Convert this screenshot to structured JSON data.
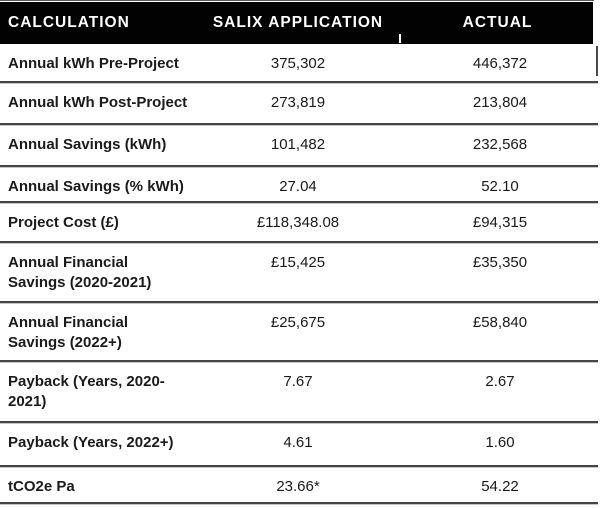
{
  "table": {
    "columns": [
      "CALCULATION",
      "SALIX APPLICATION",
      "ACTUAL"
    ],
    "rows": [
      {
        "label": "Annual kWh Pre-Project",
        "salix": "375,302",
        "actual": "446,372"
      },
      {
        "label": "Annual kWh Post-Project",
        "salix": "273,819",
        "actual": "213,804"
      },
      {
        "label": "Annual Savings (kWh)",
        "salix": "101,482",
        "actual": "232,568"
      },
      {
        "label": "Annual Savings (% kWh)",
        "salix": "27.04",
        "actual": "52.10"
      },
      {
        "label": "Project Cost (£)",
        "salix": "£118,348.08",
        "actual": "£94,315"
      },
      {
        "label": "Annual Financial\nSavings (2020-2021)",
        "salix": "£15,425",
        "actual": "£35,350"
      },
      {
        "label": "Annual Financial\nSavings (2022+)",
        "salix": "£25,675",
        "actual": "£58,840"
      },
      {
        "label": "Payback (Years, 2020-\n2021)",
        "salix": "7.67",
        "actual": "2.67"
      },
      {
        "label": "Payback (Years, 2022+)",
        "salix": "4.61",
        "actual": "1.60"
      },
      {
        "label": "tCO2e Pa",
        "salix": "23.66*",
        "actual": "54.22"
      }
    ]
  },
  "colors": {
    "header_bg": "#020202",
    "header_text": "#ffffff",
    "row_line_dark": "#454545",
    "row_line_light": "#c6c6c6",
    "body_text": "#1a1a1a"
  }
}
